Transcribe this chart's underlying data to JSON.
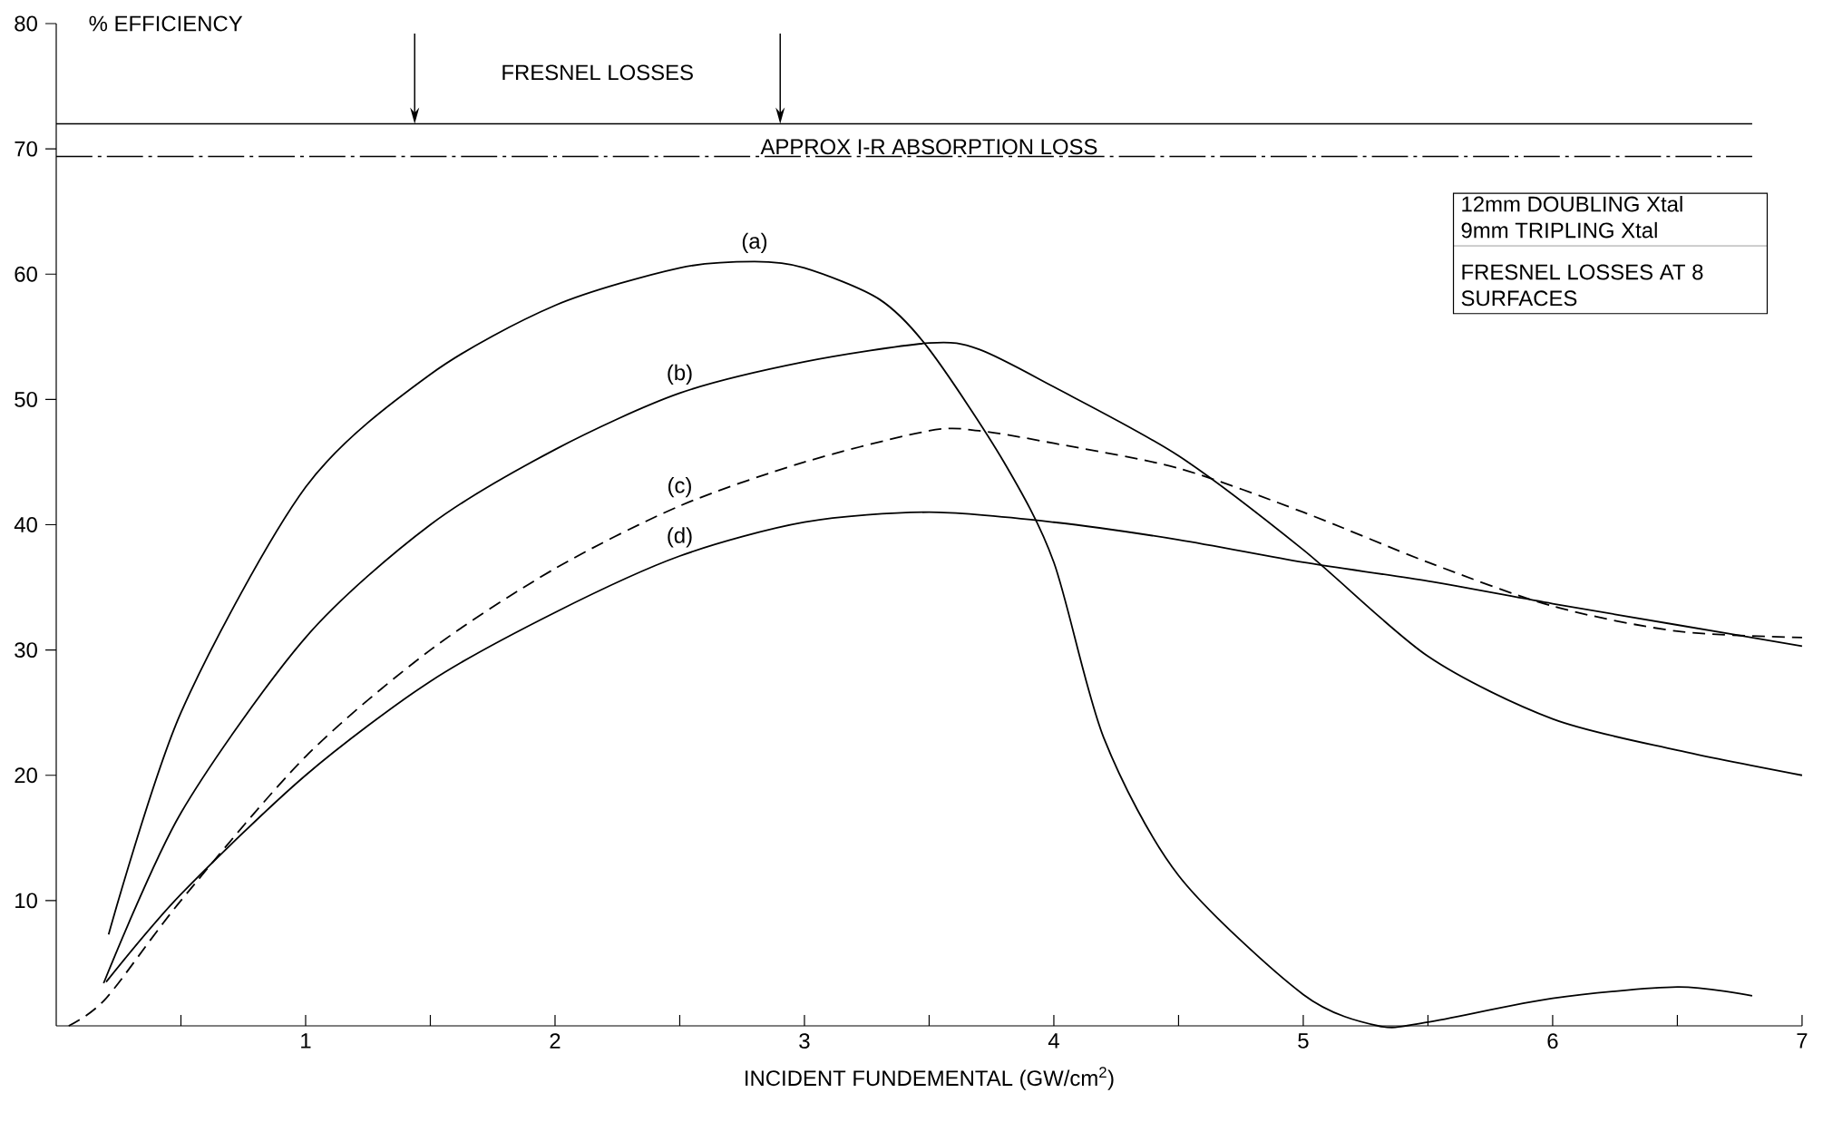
{
  "chart_data": {
    "type": "line",
    "xlabel": "INCIDENT FUNDEMENTAL (GW/cm$^{2}$)",
    "ylabel": "% EFFICIENCY",
    "xlim": [
      0,
      7
    ],
    "ylim": [
      0,
      80
    ],
    "xticks": [
      {
        "value": 0.5,
        "label": null
      },
      1,
      {
        "value": 1.5,
        "label": null
      },
      2,
      {
        "value": 2.5,
        "label": null
      },
      3,
      {
        "value": 3.5,
        "label": null
      },
      4,
      {
        "value": 4.5,
        "label": null
      },
      5,
      {
        "value": 5.5,
        "label": null
      },
      6,
      {
        "value": 6.5,
        "label": null
      },
      7
    ],
    "yticks": [
      10,
      20,
      30,
      40,
      50,
      60,
      70,
      80
    ],
    "series": [
      {
        "name": "(a)",
        "color": "#000000",
        "line_style": "solid",
        "x": [
          0.21,
          0.5,
          1,
          1.5,
          2,
          2.5,
          2.8,
          3,
          3.3,
          3.5,
          3.8,
          4,
          4.2,
          4.5,
          5,
          5.3,
          5.5,
          6,
          6.5,
          6.8
        ],
        "values": [
          7.3,
          25,
          43,
          52,
          57.5,
          60.5,
          61,
          60.5,
          58,
          54,
          45,
          37,
          23,
          12,
          2.5,
          0,
          0.3,
          2.2,
          3.1,
          2.4
        ]
      },
      {
        "name": "(b)",
        "color": "#000000",
        "line_style": "solid",
        "x": [
          0.19,
          0.5,
          1,
          1.5,
          2,
          2.5,
          3,
          3.5,
          3.7,
          4,
          4.5,
          5,
          5.5,
          6,
          6.5,
          7
        ],
        "values": [
          3.4,
          17,
          31,
          40,
          46,
          50.5,
          53,
          54.5,
          54,
          51,
          45.5,
          38,
          29.5,
          24.5,
          22,
          20
        ]
      },
      {
        "name": "(c)",
        "color": "#000000",
        "line_style": "dashed",
        "x": [
          0.05,
          0.2,
          0.5,
          1,
          1.5,
          2,
          2.5,
          3,
          3.5,
          3.7,
          4,
          4.5,
          5,
          5.5,
          6,
          6.5,
          7
        ],
        "values": [
          0,
          2.2,
          10,
          21.5,
          30,
          36.5,
          41.5,
          45,
          47.5,
          47.5,
          46.5,
          44.5,
          41,
          37,
          33.5,
          31.5,
          31
        ]
      },
      {
        "name": "(d)",
        "color": "#000000",
        "line_style": "solid",
        "x": [
          0.2,
          0.5,
          1,
          1.5,
          2,
          2.5,
          3,
          3.5,
          4,
          4.5,
          5,
          5.5,
          6,
          6.5,
          7
        ],
        "values": [
          3.5,
          10.5,
          20,
          27.5,
          33,
          37.5,
          40.2,
          41,
          40.2,
          38.8,
          37,
          35.5,
          33.7,
          32,
          30.3
        ]
      }
    ],
    "ref_lines": [
      {
        "axis": "y",
        "value": 72,
        "label": null,
        "line_style": "solid"
      },
      {
        "axis": "y",
        "value": 69.4,
        "label": "APPROX I-R ABSORPTION LOSS",
        "line_style": "dashdot"
      }
    ],
    "annotations": [
      "FRESNEL LOSSES",
      "12mm DOUBLING Xtal",
      "9mm TRIPLING Xtal",
      "FRESNEL LOSSES AT 8 SURFACES"
    ]
  }
}
